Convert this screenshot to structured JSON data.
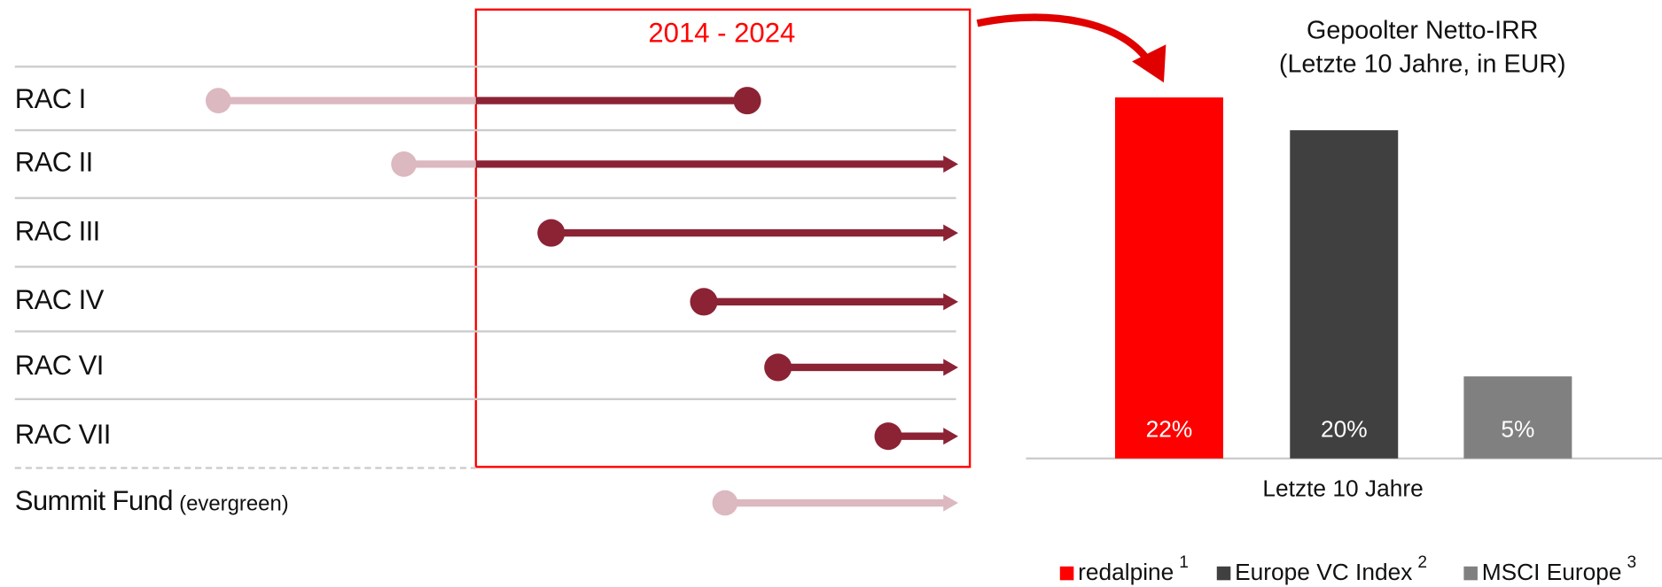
{
  "timeline": {
    "period": "2014 - 2024",
    "rows": [
      {
        "label": "RAC I"
      },
      {
        "label": "RAC II"
      },
      {
        "label": "RAC III"
      },
      {
        "label": "RAC IV"
      },
      {
        "label": "RAC VI"
      },
      {
        "label": "RAC VII"
      }
    ],
    "summit": {
      "label": "Summit Fund",
      "note": "(evergreen)"
    }
  },
  "chart_data": {
    "type": "bar",
    "title": [
      "Gepoolter Netto-IRR",
      "(Letzte 10 Jahre, in EUR)"
    ],
    "categories": [
      "Letzte 10 Jahre"
    ],
    "ylim": [
      0,
      22
    ],
    "series": [
      {
        "name": "redalpine",
        "footnote": "1",
        "color": "#ff0000",
        "values": [
          22
        ],
        "value_labels": [
          "22%"
        ]
      },
      {
        "name": "Europe VC Index",
        "footnote": "2",
        "color": "#404040",
        "values": [
          20
        ],
        "value_labels": [
          "20%"
        ]
      },
      {
        "name": "MSCI Europe",
        "footnote": "3",
        "color": "#808080",
        "values": [
          5
        ],
        "value_labels": [
          "5%"
        ]
      }
    ]
  }
}
